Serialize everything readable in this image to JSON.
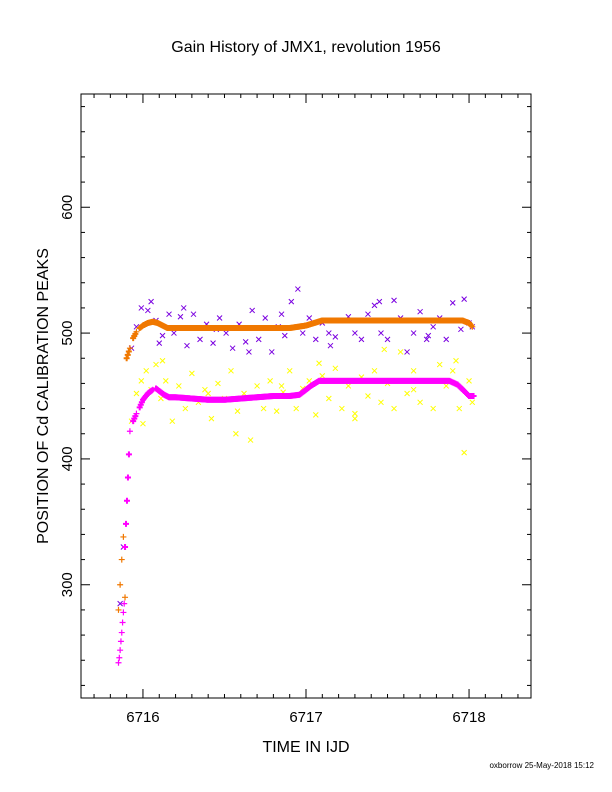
{
  "chart_data": {
    "type": "scatter",
    "title": "Gain History of JMX1, revolution 1956",
    "xlabel": "TIME IN IJD",
    "ylabel": "POSITION OF Cd CALIBRATION PEAKS",
    "xlim": [
      6715.62,
      6718.38
    ],
    "ylim": [
      210,
      690
    ],
    "x_ticks": [
      6716,
      6717,
      6718
    ],
    "x_tick_labels": [
      "6716",
      "6717",
      "6718"
    ],
    "y_ticks": [
      300,
      400,
      500,
      600
    ],
    "y_tick_labels": [
      "300",
      "400",
      "500",
      "600"
    ],
    "grid": false,
    "legend": "none",
    "footer": "oxborrow 25-May-2018 15:12",
    "colors": {
      "orange": "#f07800",
      "magenta": "#ff00ff",
      "purple": "#7a00e0",
      "yellow": "#ffff00"
    },
    "series": [
      {
        "marker": "+",
        "color": "#f07800",
        "line_weight": "heavy",
        "x": [
          6715.85,
          6715.86,
          6715.87,
          6715.88,
          6715.89,
          6715.9,
          6715.92,
          6715.94,
          6715.96,
          6715.98,
          6716.0,
          6716.03,
          6716.06,
          6716.09,
          6716.12,
          6716.15,
          6716.2,
          6716.3,
          6716.4,
          6716.5,
          6716.6,
          6716.7,
          6716.8,
          6716.9,
          6717.0,
          6717.1,
          6717.2,
          6717.4,
          6717.6,
          6717.8,
          6717.9,
          6717.96,
          6718.0,
          6718.02
        ],
        "y": [
          280,
          300,
          320,
          338,
          290,
          480,
          488,
          496,
          501,
          504,
          506,
          508,
          509,
          508,
          506,
          504,
          504,
          504,
          504,
          504,
          504,
          504,
          504,
          504,
          506,
          510,
          510,
          510,
          510,
          510,
          510,
          510,
          508,
          505
        ]
      },
      {
        "marker": "+",
        "color": "#ff00ff",
        "line_weight": "heavy",
        "x": [
          6715.85,
          6715.855,
          6715.86,
          6715.865,
          6715.87,
          6715.875,
          6715.88,
          6715.885,
          6715.89,
          6715.92,
          6715.94,
          6715.96,
          6715.98,
          6716.0,
          6716.03,
          6716.06,
          6716.08,
          6716.1,
          6716.13,
          6716.16,
          6716.2,
          6716.3,
          6716.4,
          6716.5,
          6716.6,
          6716.7,
          6716.8,
          6716.9,
          6716.96,
          6717.03,
          6717.08,
          6717.2,
          6717.4,
          6717.6,
          6717.8,
          6717.88,
          6717.93,
          6717.97,
          6718.0,
          6718.03
        ],
        "y": [
          238,
          242,
          248,
          255,
          262,
          270,
          278,
          285,
          330,
          422,
          430,
          436,
          441,
          447,
          452,
          455,
          456,
          454,
          451,
          449,
          449,
          448,
          447,
          447,
          448,
          449,
          450,
          450,
          451,
          458,
          462,
          462,
          462,
          462,
          462,
          462,
          459,
          454,
          450,
          450
        ]
      },
      {
        "marker": "x",
        "color": "#7a00e0",
        "scatter": true,
        "x": [
          6715.86,
          6715.88,
          6715.93,
          6715.96,
          6715.99,
          6716.03,
          6716.05,
          6716.08,
          6716.12,
          6716.16,
          6716.19,
          6716.23,
          6716.27,
          6716.31,
          6716.35,
          6716.39,
          6716.43,
          6716.47,
          6716.51,
          6716.55,
          6716.59,
          6716.63,
          6716.67,
          6716.71,
          6716.75,
          6716.79,
          6716.83,
          6716.87,
          6716.91,
          6716.95,
          6716.98,
          6717.02,
          6717.06,
          6717.1,
          6717.14,
          6717.18,
          6717.22,
          6717.26,
          6717.3,
          6717.34,
          6717.38,
          6717.42,
          6717.46,
          6717.5,
          6717.54,
          6717.58,
          6717.62,
          6717.66,
          6717.7,
          6717.74,
          6717.78,
          6717.82,
          6717.86,
          6717.9,
          6717.94,
          6717.97,
          6718.0,
          6718.02,
          6716.1,
          6716.25,
          6716.45,
          6716.65,
          6716.85,
          6717.15,
          6717.45,
          6717.75,
          6717.95
        ],
        "y": [
          285,
          330,
          488,
          505,
          520,
          518,
          525,
          510,
          498,
          515,
          500,
          513,
          490,
          515,
          495,
          507,
          492,
          512,
          500,
          488,
          507,
          493,
          518,
          495,
          512,
          485,
          505,
          498,
          525,
          535,
          500,
          512,
          495,
          508,
          500,
          497,
          510,
          513,
          500,
          495,
          515,
          522,
          500,
          495,
          526,
          512,
          485,
          500,
          517,
          495,
          505,
          512,
          495,
          524,
          510,
          527,
          508,
          505,
          492,
          520,
          503,
          485,
          515,
          490,
          525,
          498,
          503
        ]
      },
      {
        "marker": "x",
        "color": "#ffff00",
        "scatter": true,
        "x": [
          6715.93,
          6715.96,
          6715.99,
          6716.02,
          6716.05,
          6716.08,
          6716.11,
          6716.14,
          6716.18,
          6716.22,
          6716.26,
          6716.3,
          6716.34,
          6716.38,
          6716.42,
          6716.46,
          6716.5,
          6716.54,
          6716.58,
          6716.62,
          6716.66,
          6716.7,
          6716.74,
          6716.78,
          6716.82,
          6716.86,
          6716.9,
          6716.94,
          6716.98,
          6717.02,
          6717.06,
          6717.1,
          6717.14,
          6717.18,
          6717.22,
          6717.26,
          6717.3,
          6717.34,
          6717.38,
          6717.42,
          6717.46,
          6717.5,
          6717.54,
          6717.58,
          6717.62,
          6717.66,
          6717.7,
          6717.74,
          6717.78,
          6717.82,
          6717.86,
          6717.9,
          6717.94,
          6717.97,
          6718.0,
          6718.02,
          6716.0,
          6716.12,
          6716.4,
          6716.57,
          6716.85,
          6717.08,
          6717.3,
          6717.48,
          6717.66,
          6717.92
        ],
        "y": [
          430,
          452,
          462,
          470,
          455,
          475,
          448,
          462,
          430,
          458,
          440,
          468,
          445,
          455,
          432,
          460,
          448,
          470,
          438,
          452,
          415,
          458,
          440,
          462,
          438,
          453,
          470,
          440,
          456,
          462,
          435,
          466,
          448,
          472,
          440,
          458,
          436,
          465,
          450,
          470,
          445,
          460,
          440,
          485,
          452,
          470,
          445,
          462,
          440,
          475,
          458,
          470,
          440,
          405,
          462,
          445,
          428,
          478,
          452,
          420,
          458,
          476,
          432,
          487,
          455,
          478
        ]
      }
    ]
  }
}
